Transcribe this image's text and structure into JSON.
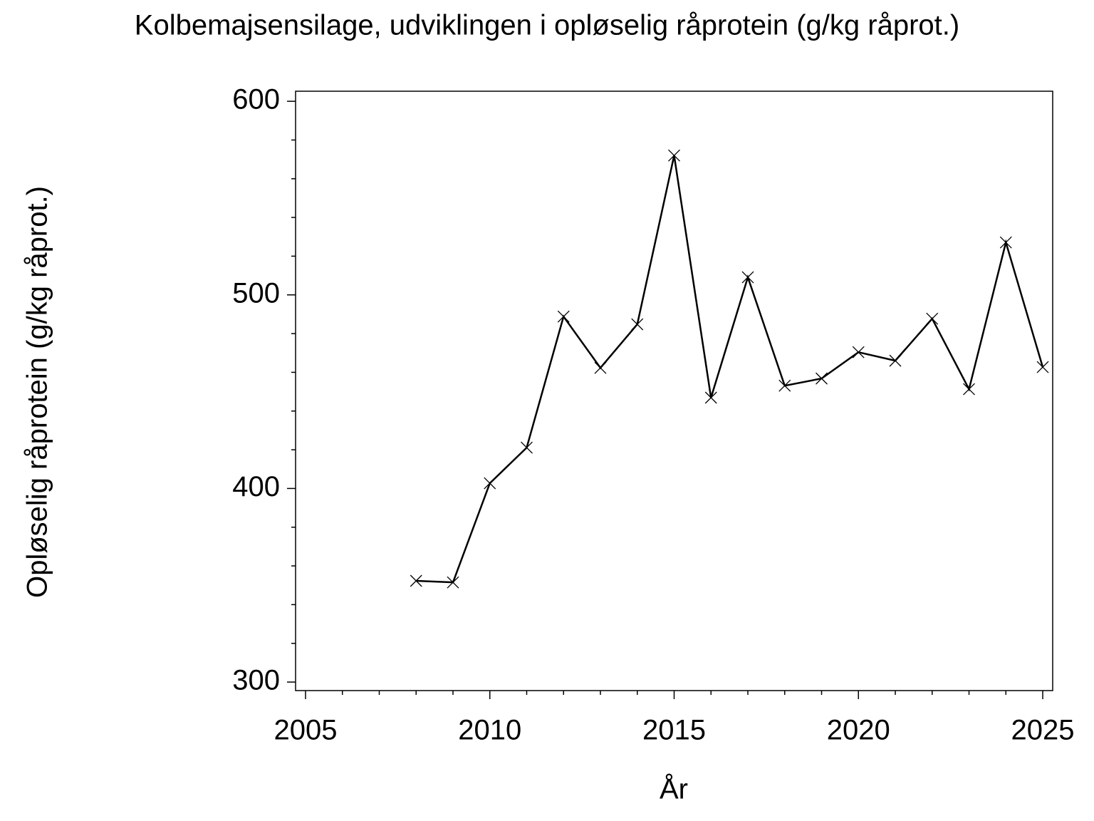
{
  "chart_data": {
    "type": "line",
    "title": "Kolbemajsensilage, udviklingen i opløselig råprotein (g/kg råprot.)",
    "x_label": "År",
    "y_label": "Opløselig råprotein (g/kg råprot.)",
    "x": [
      2008,
      2009,
      2010,
      2011,
      2012,
      2013,
      2014,
      2015,
      2016,
      2017,
      2018,
      2019,
      2020,
      2021,
      2022,
      2023,
      2024,
      2025
    ],
    "series": [
      {
        "color": "#000000",
        "marker": "x",
        "values": [
          352.3,
          351.5,
          402.7,
          421.1,
          488.8,
          462.3,
          484.8,
          572.0,
          446.9,
          509.1,
          453.1,
          456.8,
          470.4,
          466.0,
          487.7,
          451.3,
          527.1,
          462.7
        ]
      }
    ],
    "xlim": [
      2004.73,
      2025.27
    ],
    "ylim": [
      295.6,
      605.2
    ],
    "xticks": [
      2005,
      2010,
      2015,
      2020,
      2025
    ],
    "yticks": [
      300,
      400,
      500,
      600
    ],
    "xminorticks": [
      2006,
      2007,
      2008,
      2009,
      2011,
      2012,
      2013,
      2014,
      2016,
      2017,
      2018,
      2019,
      2021,
      2022,
      2023,
      2024
    ],
    "yminorticks": [
      320,
      340,
      360,
      380,
      420,
      440,
      460,
      480,
      520,
      540,
      560,
      580
    ],
    "grid": false
  }
}
